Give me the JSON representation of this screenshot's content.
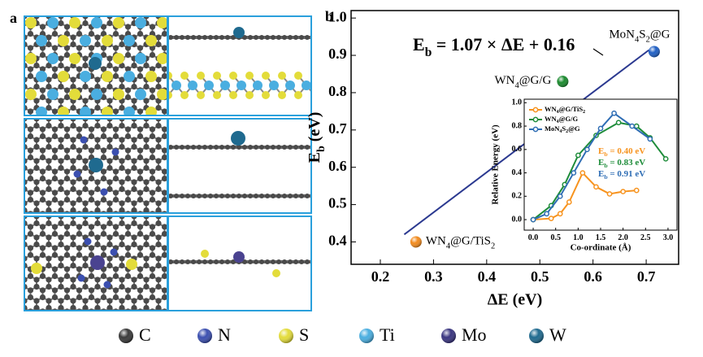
{
  "panel_labels": [
    "a",
    "b"
  ],
  "chart_data": [
    {
      "type": "scatter",
      "xlabel": "ΔE (eV)",
      "ylabel": "Eb (eV)",
      "xlim": [
        0.145,
        0.761
      ],
      "ylim": [
        0.34,
        1.02
      ],
      "xticks": [
        0.2,
        0.3,
        0.4,
        0.5,
        0.6,
        0.7
      ],
      "yticks": [
        0.4,
        0.5,
        0.6,
        0.7,
        0.8,
        0.9,
        {
          "value": 1,
          "label": "1.0"
        }
      ],
      "series": [
        {
          "name": "MoN4S2@G",
          "color": "#1f5fc4",
          "x": [
            0.715
          ],
          "values": [
            0.91
          ]
        },
        {
          "name": "WN4@G/G",
          "color": "#1a8a2e",
          "x": [
            0.543
          ],
          "values": [
            0.83
          ]
        },
        {
          "name": "WN4@G/TiS2",
          "color": "#f28a1c",
          "x": [
            0.267
          ],
          "values": [
            0.4
          ]
        }
      ],
      "fit": {
        "color": "#2b3990",
        "x": [
          0.245,
          0.705
        ],
        "values": [
          0.42,
          0.914
        ]
      },
      "annotation": "Eb = 1.07 × ΔE + 0.16"
    },
    {
      "type": "line",
      "xlabel": "Co-ordinate (Å)",
      "ylabel": "Relative Energy (eV)",
      "xlim": [
        -0.2,
        3.2
      ],
      "ylim": [
        -0.09,
        1.03
      ],
      "xticks": [
        {
          "value": 0,
          "label": "0.0"
        },
        0.5,
        {
          "value": 1,
          "label": "1.0"
        },
        1.5,
        {
          "value": 2,
          "label": "2.0"
        },
        2.5,
        {
          "value": 3,
          "label": "3.0"
        }
      ],
      "yticks": [
        {
          "value": 0,
          "label": "0.0"
        },
        0.2,
        0.4,
        0.6,
        0.8,
        {
          "value": 1,
          "label": "1.0"
        }
      ],
      "series": [
        {
          "name": "WN4@G/TiS2",
          "color": "#f7931e",
          "x": [
            0,
            0.4,
            0.6,
            0.8,
            1.1,
            1.4,
            1.7,
            2.0,
            2.3
          ],
          "values": [
            0,
            0.01,
            0.05,
            0.15,
            0.4,
            0.28,
            0.22,
            0.24,
            0.25
          ]
        },
        {
          "name": "WN4@G/G",
          "color": "#1e8c3a",
          "x": [
            0,
            0.4,
            0.7,
            1.0,
            1.4,
            1.9,
            2.3,
            2.6,
            2.95
          ],
          "values": [
            0,
            0.12,
            0.3,
            0.55,
            0.72,
            0.83,
            0.8,
            0.7,
            0.52
          ]
        },
        {
          "name": "MoN4S2@G",
          "color": "#2e6db4",
          "x": [
            0,
            0.3,
            0.6,
            0.9,
            1.2,
            1.5,
            1.8,
            2.2,
            2.6
          ],
          "values": [
            0,
            0.05,
            0.2,
            0.4,
            0.6,
            0.78,
            0.91,
            0.8,
            0.69
          ]
        }
      ],
      "annotations": [
        {
          "text": "Eb = 0.40 eV",
          "color": "#f7931e"
        },
        {
          "text": "Eb = 0.83 eV",
          "color": "#1e8c3a"
        },
        {
          "text": "Eb = 0.91 eV",
          "color": "#2e6db4"
        }
      ]
    }
  ],
  "legend": [
    {
      "label": "C",
      "color": "#3a3a3a"
    },
    {
      "label": "N",
      "color": "#3b4fb0"
    },
    {
      "label": "S",
      "color": "#e3dc3a"
    },
    {
      "label": "Ti",
      "color": "#4aaee0"
    },
    {
      "label": "Mo",
      "color": "#3a3580"
    },
    {
      "label": "W",
      "color": "#1f6a8f"
    }
  ]
}
